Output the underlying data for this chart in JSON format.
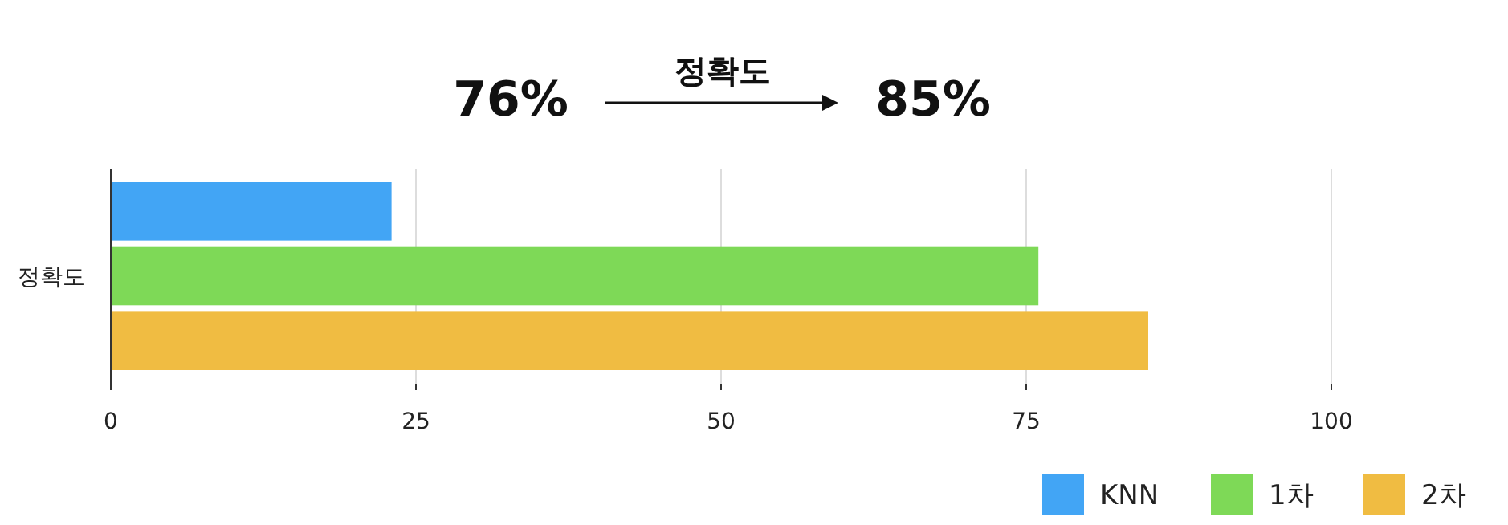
{
  "chart_data": {
    "type": "bar",
    "orientation": "horizontal",
    "categories": [
      "정확도"
    ],
    "series": [
      {
        "name": "KNN",
        "color": "#42a5f5",
        "values": [
          23
        ]
      },
      {
        "name": "1차",
        "color": "#7ed957",
        "values": [
          76
        ]
      },
      {
        "name": "2차",
        "color": "#f0bc42",
        "values": [
          85
        ]
      }
    ],
    "xlim": [
      0,
      100
    ],
    "xticks": [
      0,
      25,
      50,
      75,
      100
    ],
    "grid": "x",
    "legend": "bottom right",
    "annotations": [
      "76%",
      "정확도",
      "85%"
    ]
  }
}
